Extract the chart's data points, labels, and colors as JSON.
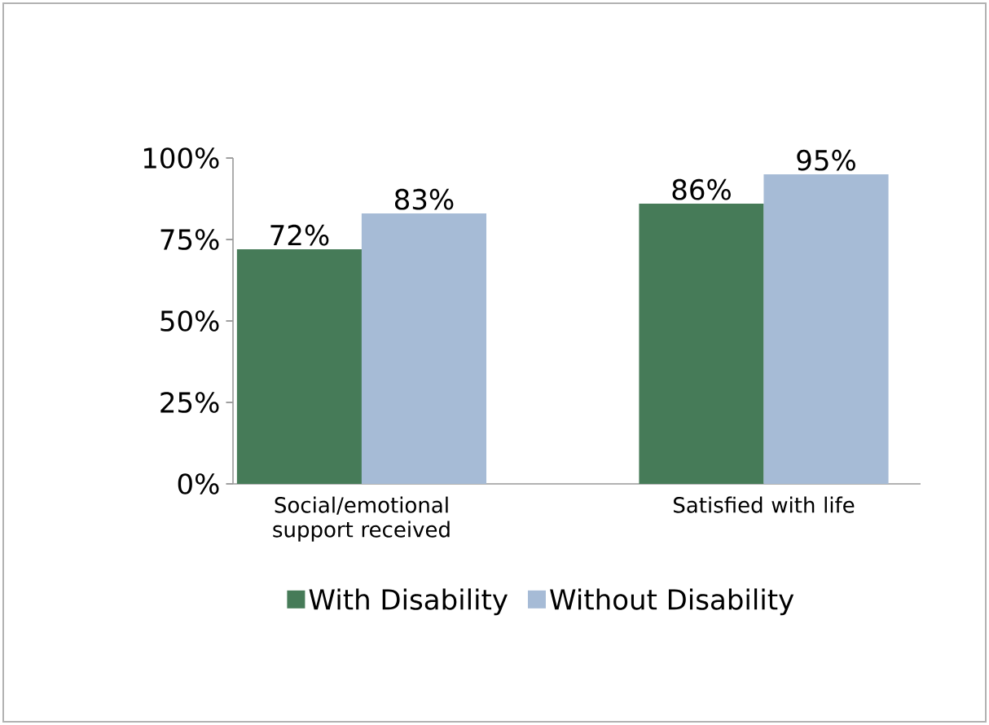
{
  "chart_data": {
    "type": "bar",
    "categories": [
      "Social/emotional support received",
      "Satisfied with life"
    ],
    "series": [
      {
        "name": "With Disability",
        "color": "#467b58",
        "values": [
          72,
          86
        ],
        "value_labels": [
          "72%",
          "86%"
        ]
      },
      {
        "name": "Without Disability",
        "color": "#a6bbd6",
        "values": [
          83,
          95
        ],
        "value_labels": [
          "83%",
          "95%"
        ]
      }
    ],
    "ylim": [
      0,
      100
    ],
    "yticks": [
      {
        "value": 0,
        "label": "0%"
      },
      {
        "value": 25,
        "label": "25%"
      },
      {
        "value": 50,
        "label": "50%"
      },
      {
        "value": 75,
        "label": "75%"
      },
      {
        "value": 100,
        "label": "100%"
      }
    ],
    "grid": false,
    "legend": "bottom"
  }
}
